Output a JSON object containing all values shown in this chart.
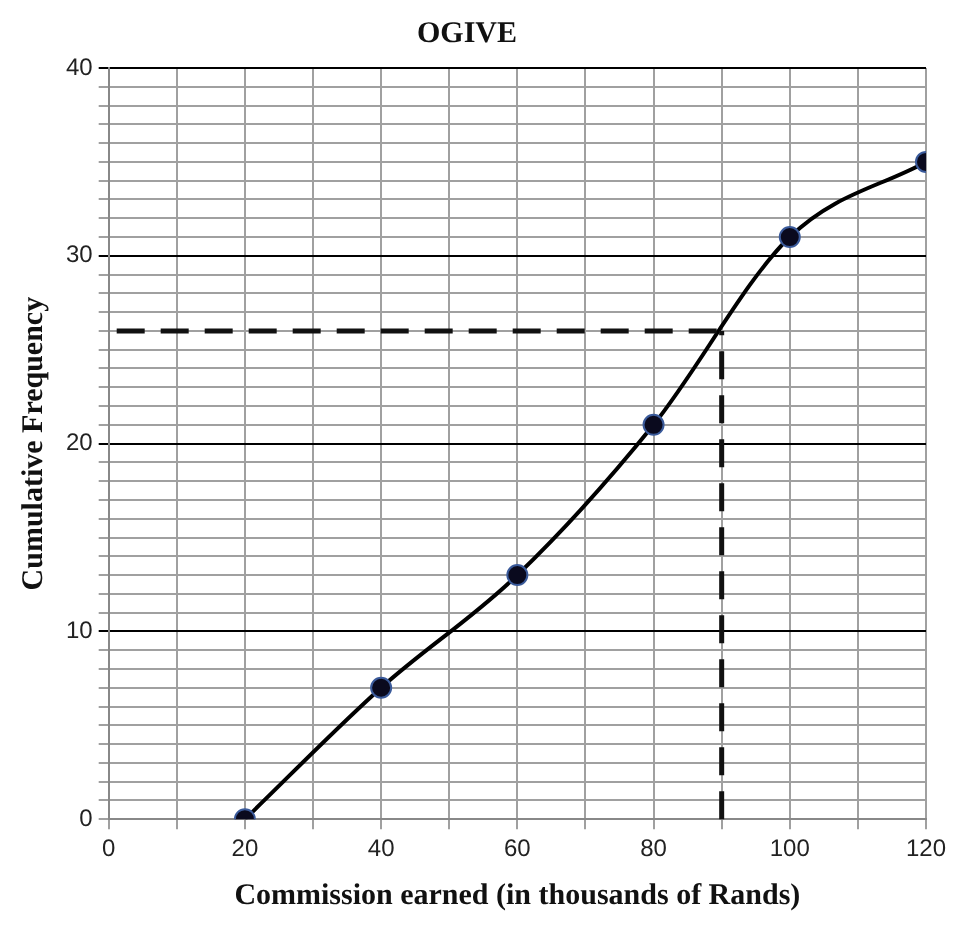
{
  "chart_data": {
    "type": "line",
    "title": "OGIVE",
    "xlabel": "Commission earned (in thousands of Rands)",
    "ylabel": "Cumulative Frequency",
    "x": [
      20,
      40,
      60,
      80,
      100,
      120
    ],
    "series": [
      {
        "color": "#000000",
        "values": [
          0,
          7,
          13,
          21,
          31,
          35
        ]
      }
    ],
    "xlim": [
      0,
      120
    ],
    "xticks": [
      0,
      {
        "value": 10,
        "label": null
      },
      20,
      {
        "value": 30,
        "label": null
      },
      40,
      {
        "value": 50,
        "label": null
      },
      60,
      {
        "value": 70,
        "label": null
      },
      80,
      {
        "value": 90,
        "label": null
      },
      100,
      {
        "value": 110,
        "label": null
      },
      120
    ],
    "ylim": [
      0,
      40
    ],
    "yticks": [
      0,
      {
        "value": 1,
        "label": null
      },
      {
        "value": 2,
        "label": null
      },
      {
        "value": 3,
        "label": null
      },
      {
        "value": 4,
        "label": null
      },
      {
        "value": 5,
        "label": null
      },
      {
        "value": 6,
        "label": null
      },
      {
        "value": 7,
        "label": null
      },
      {
        "value": 8,
        "label": null
      },
      {
        "value": 9,
        "label": null
      },
      10,
      {
        "value": 11,
        "label": null
      },
      {
        "value": 12,
        "label": null
      },
      {
        "value": 13,
        "label": null
      },
      {
        "value": 14,
        "label": null
      },
      {
        "value": 15,
        "label": null
      },
      {
        "value": 16,
        "label": null
      },
      {
        "value": 17,
        "label": null
      },
      {
        "value": 18,
        "label": null
      },
      {
        "value": 19,
        "label": null
      },
      20,
      {
        "value": 21,
        "label": null
      },
      {
        "value": 22,
        "label": null
      },
      {
        "value": 23,
        "label": null
      },
      {
        "value": 24,
        "label": null
      },
      {
        "value": 25,
        "label": null
      },
      {
        "value": 26,
        "label": null
      },
      {
        "value": 27,
        "label": null
      },
      {
        "value": 28,
        "label": null
      },
      {
        "value": 29,
        "label": null
      },
      30,
      {
        "value": 31,
        "label": null
      },
      {
        "value": 32,
        "label": null
      },
      {
        "value": 33,
        "label": null
      },
      {
        "value": 34,
        "label": null
      },
      {
        "value": 35,
        "label": null
      },
      {
        "value": 36,
        "label": null
      },
      {
        "value": 37,
        "label": null
      },
      {
        "value": 38,
        "label": null
      },
      {
        "value": 39,
        "label": null
      },
      40
    ],
    "grid": true,
    "legend": false,
    "marker": "circle",
    "line_style": "solid",
    "ref_lines": [
      {
        "axis": "y",
        "value": 26,
        "line_style": "dashed"
      },
      {
        "axis": "x",
        "value": 90,
        "line_style": "dashed"
      }
    ]
  }
}
